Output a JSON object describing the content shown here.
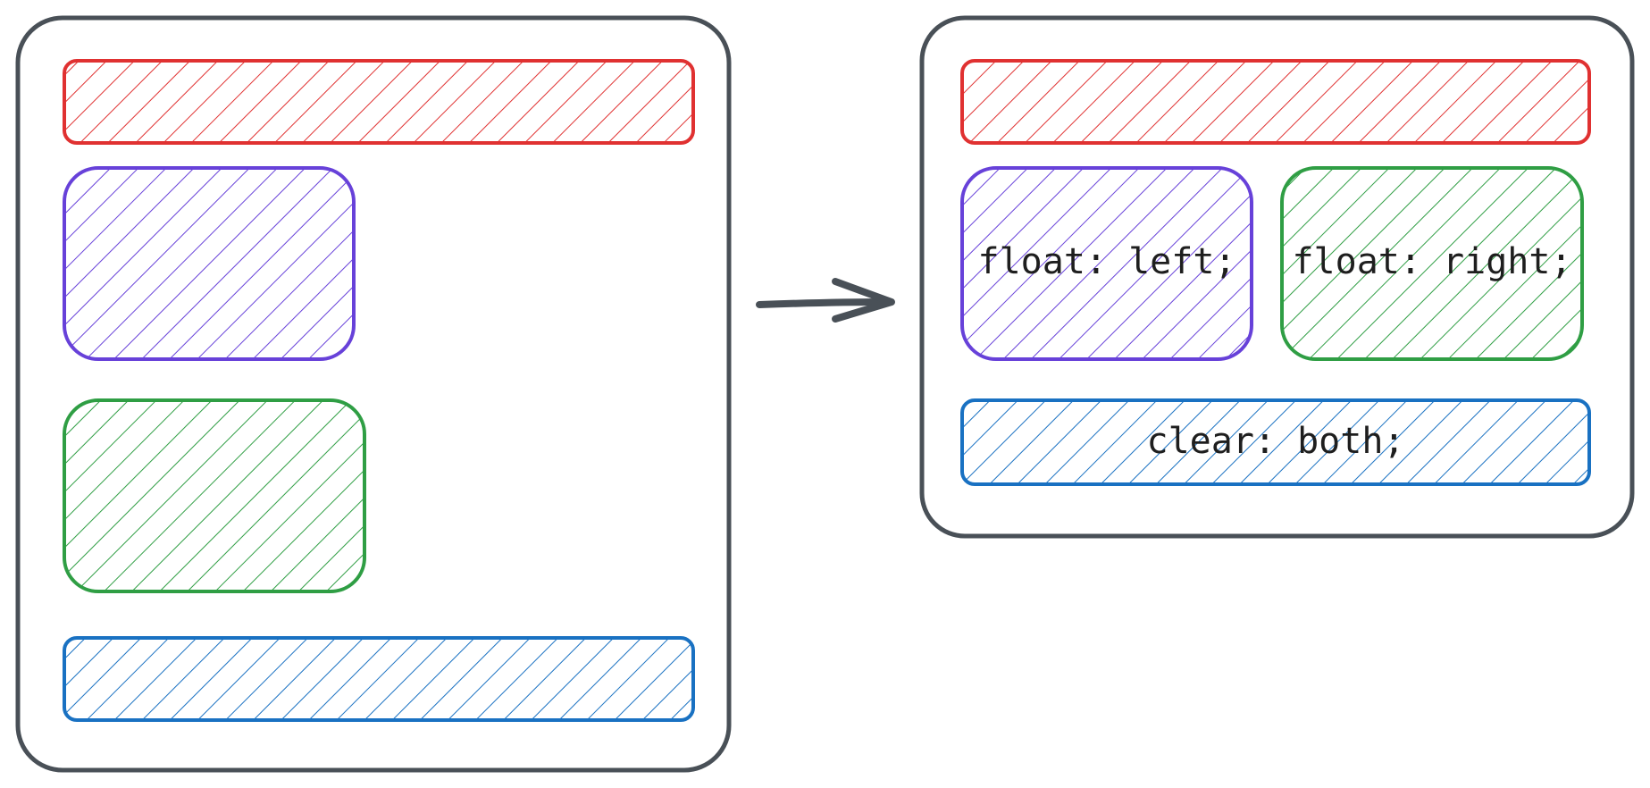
{
  "colors": {
    "frame": "#495057",
    "header": "#e03131",
    "float_left": "#6741d9",
    "float_right": "#2f9e44",
    "footer": "#1971c2",
    "text": "#1e1e1e"
  },
  "after": {
    "float_left_label": "float: left;",
    "float_right_label": "float: right;",
    "footer_label": "clear: both;"
  }
}
